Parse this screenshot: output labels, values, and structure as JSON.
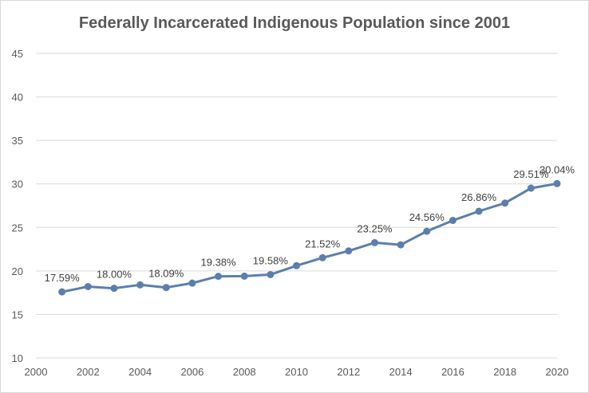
{
  "chart_data": {
    "type": "line",
    "title": "Federally Incarcerated Indigenous Population since 2001",
    "xlabel": "",
    "ylabel": "",
    "xlim": [
      2000,
      2020
    ],
    "ylim": [
      10,
      45
    ],
    "x_ticks": [
      "2000",
      "2002",
      "2004",
      "2006",
      "2008",
      "2010",
      "2012",
      "2014",
      "2016",
      "2018",
      "2020"
    ],
    "y_ticks": [
      "10",
      "15",
      "20",
      "25",
      "30",
      "35",
      "40",
      "45"
    ],
    "grid": true,
    "legend": "none",
    "line_color": "#5b7fad",
    "series": [
      {
        "x": [
          2001,
          2002,
          2003,
          2004,
          2005,
          2006,
          2007,
          2008,
          2009,
          2010,
          2011,
          2012,
          2013,
          2014,
          2015,
          2016,
          2017,
          2018,
          2019,
          2020
        ],
        "values": [
          17.59,
          18.2,
          18.0,
          18.4,
          18.09,
          18.6,
          19.38,
          19.4,
          19.58,
          20.6,
          21.52,
          22.3,
          23.25,
          23.0,
          24.56,
          25.8,
          26.86,
          27.8,
          29.51,
          30.04
        ]
      }
    ],
    "data_labels": [
      {
        "x": 2001,
        "y": 17.59,
        "text": "17.59%"
      },
      {
        "x": 2003,
        "y": 18.0,
        "text": "18.00%"
      },
      {
        "x": 2005,
        "y": 18.09,
        "text": "18.09%"
      },
      {
        "x": 2007,
        "y": 19.38,
        "text": "19.38%"
      },
      {
        "x": 2009,
        "y": 19.58,
        "text": "19.58%"
      },
      {
        "x": 2011,
        "y": 21.52,
        "text": "21.52%"
      },
      {
        "x": 2013,
        "y": 23.25,
        "text": "23.25%"
      },
      {
        "x": 2015,
        "y": 24.56,
        "text": "24.56%"
      },
      {
        "x": 2017,
        "y": 26.86,
        "text": "26.86%"
      },
      {
        "x": 2019,
        "y": 29.51,
        "text": "29.51%"
      },
      {
        "x": 2020,
        "y": 30.04,
        "text": "30.04%"
      }
    ]
  }
}
